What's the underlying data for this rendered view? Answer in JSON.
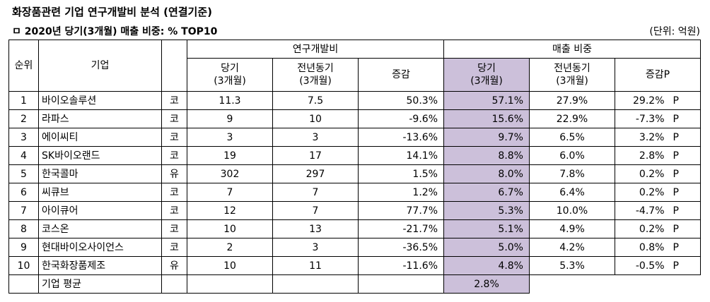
{
  "title": "화장품관련 기업 연구개발비 분석 (연결기준)",
  "subtitle": "ㅁ 2020년 당기(3개월) 매출 비중: % TOP10",
  "unit": "(단위: 억원)",
  "header": {
    "rank": "순위",
    "company": "기업",
    "rnd_group": "연구개발비",
    "sales_group": "매출 비중",
    "current_l1": "당기",
    "current_l2": "(3개월)",
    "prior_l1": "전년동기",
    "prior_l2": "(3개월)",
    "change": "증감",
    "changep": "증감P"
  },
  "rows": [
    {
      "rank": "1",
      "company": "바이오솔루션",
      "market": "코",
      "rnd_cur": "11.3",
      "rnd_prev": "7.5",
      "rnd_chg": "50.3%",
      "sales_cur": "57.1%",
      "sales_prev": "27.9%",
      "sales_chg": "29.2%",
      "p": "P"
    },
    {
      "rank": "2",
      "company": "라파스",
      "market": "코",
      "rnd_cur": "9",
      "rnd_prev": "10",
      "rnd_chg": "-9.6%",
      "sales_cur": "15.6%",
      "sales_prev": "22.9%",
      "sales_chg": "-7.3%",
      "p": "P"
    },
    {
      "rank": "3",
      "company": "에이씨티",
      "market": "코",
      "rnd_cur": "3",
      "rnd_prev": "3",
      "rnd_chg": "-13.6%",
      "sales_cur": "9.7%",
      "sales_prev": "6.5%",
      "sales_chg": "3.2%",
      "p": "P"
    },
    {
      "rank": "4",
      "company": "SK바이오랜드",
      "market": "코",
      "rnd_cur": "19",
      "rnd_prev": "17",
      "rnd_chg": "14.1%",
      "sales_cur": "8.8%",
      "sales_prev": "6.0%",
      "sales_chg": "2.8%",
      "p": "P"
    },
    {
      "rank": "5",
      "company": "한국콜마",
      "market": "유",
      "rnd_cur": "302",
      "rnd_prev": "297",
      "rnd_chg": "1.5%",
      "sales_cur": "8.0%",
      "sales_prev": "7.8%",
      "sales_chg": "0.2%",
      "p": "P"
    },
    {
      "rank": "6",
      "company": "씨큐브",
      "market": "코",
      "rnd_cur": "7",
      "rnd_prev": "7",
      "rnd_chg": "1.2%",
      "sales_cur": "6.7%",
      "sales_prev": "6.4%",
      "sales_chg": "0.2%",
      "p": "P"
    },
    {
      "rank": "7",
      "company": "아이큐어",
      "market": "코",
      "rnd_cur": "12",
      "rnd_prev": "7",
      "rnd_chg": "77.7%",
      "sales_cur": "5.3%",
      "sales_prev": "10.0%",
      "sales_chg": "-4.7%",
      "p": "P"
    },
    {
      "rank": "8",
      "company": "코스온",
      "market": "코",
      "rnd_cur": "10",
      "rnd_prev": "13",
      "rnd_chg": "-21.7%",
      "sales_cur": "5.1%",
      "sales_prev": "4.9%",
      "sales_chg": "0.2%",
      "p": "P"
    },
    {
      "rank": "9",
      "company": "현대바이오사이언스",
      "market": "코",
      "rnd_cur": "2",
      "rnd_prev": "3",
      "rnd_chg": "-36.5%",
      "sales_cur": "5.0%",
      "sales_prev": "4.2%",
      "sales_chg": "0.8%",
      "p": "P"
    },
    {
      "rank": "10",
      "company": "한국화장품제조",
      "market": "유",
      "rnd_cur": "10",
      "rnd_prev": "11",
      "rnd_chg": "-11.6%",
      "sales_cur": "4.8%",
      "sales_prev": "5.3%",
      "sales_chg": "-0.5%",
      "p": "P"
    }
  ],
  "average": {
    "label": "기업 평균",
    "sales_cur": "2.8%"
  },
  "colors": {
    "highlight": "#ccc0da"
  }
}
